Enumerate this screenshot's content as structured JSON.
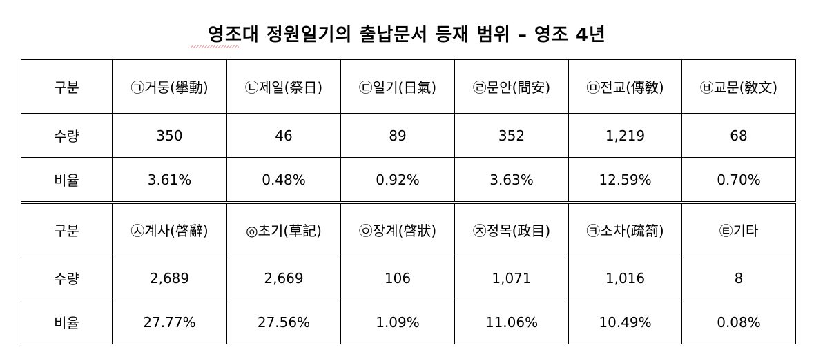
{
  "title": "영조대 정원일기의 출납문서 등재 범위 – 영조 4년",
  "table1": {
    "header": [
      "구분",
      "㉠거둥(擧動)",
      "㉡제일(祭日)",
      "㉢일기(日氣)",
      "㉣문안(問安)",
      "㉤전교(傳敎)",
      "㉥교문(敎文)"
    ],
    "quantity": [
      "수량",
      "350",
      "46",
      "89",
      "352",
      "1,219",
      "68"
    ],
    "ratio": [
      "비율",
      "3.61%",
      "0.48%",
      "0.92%",
      "3.63%",
      "12.59%",
      "0.70%"
    ]
  },
  "table2": {
    "header": [
      "구분",
      "㉦계사(啓辭)",
      "◎초기(草記)",
      "㉧장계(啓狀)",
      "㉨정목(政目)",
      "㉪소차(疏箚)",
      "㉫기타"
    ],
    "quantity": [
      "수량",
      "2,689",
      "2,669",
      "106",
      "1,071",
      "1,016",
      "8"
    ],
    "ratio": [
      "비율",
      "27.77%",
      "27.56%",
      "1.09%",
      "11.06%",
      "10.49%",
      "0.08%"
    ]
  }
}
